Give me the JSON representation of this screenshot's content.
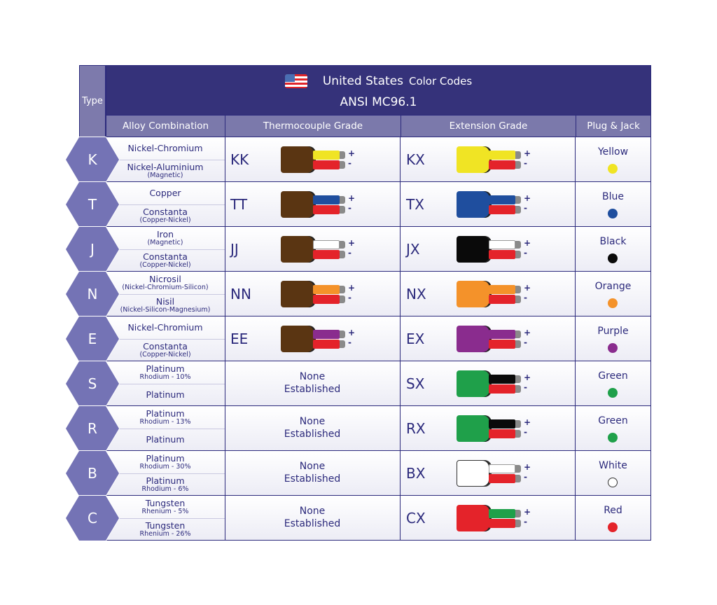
{
  "header": {
    "type_label": "Type",
    "country": "United States",
    "title_suffix": "Color Codes",
    "standard": "ANSI MC96.1",
    "flag_icon": "us-flag-icon"
  },
  "columns": {
    "alloy": "Alloy Combination",
    "thermocouple": "Thermocouple Grade",
    "extension": "Extension Grade",
    "plug": "Plug & Jack"
  },
  "signs": {
    "pos": "+",
    "neg": "-"
  },
  "none_text": [
    "None",
    "Established"
  ],
  "colors": {
    "brown": "#5a3512",
    "yellow": "#f0e424",
    "red": "#e4232a",
    "blue": "#1f4e9e",
    "white": "#ffffff",
    "black": "#0a0a0a",
    "orange": "#f4922a",
    "purple": "#8a2c8e",
    "green": "#1fa04a"
  },
  "rows": [
    {
      "type": "K",
      "alloys": [
        {
          "name": "Nickel-Chromium"
        },
        {
          "name": "Nickel-Aluminium",
          "sub": "(Magnetic)"
        }
      ],
      "tc": {
        "code": "KK",
        "jacket": "brown",
        "pos": "yellow",
        "neg": "red"
      },
      "ext": {
        "code": "KX",
        "jacket": "yellow",
        "pos": "yellow",
        "neg": "red"
      },
      "plug": {
        "name": "Yellow",
        "color": "yellow"
      }
    },
    {
      "type": "T",
      "alloys": [
        {
          "name": "Copper"
        },
        {
          "name": "Constanta",
          "sub": "(Copper-Nickel)"
        }
      ],
      "tc": {
        "code": "TT",
        "jacket": "brown",
        "pos": "blue",
        "neg": "red"
      },
      "ext": {
        "code": "TX",
        "jacket": "blue",
        "pos": "blue",
        "neg": "red"
      },
      "plug": {
        "name": "Blue",
        "color": "blue"
      }
    },
    {
      "type": "J",
      "alloys": [
        {
          "name": "Iron",
          "sub": "(Magnetic)"
        },
        {
          "name": "Constanta",
          "sub": "(Copper-Nickel)"
        }
      ],
      "tc": {
        "code": "JJ",
        "jacket": "brown",
        "pos": "white",
        "neg": "red"
      },
      "ext": {
        "code": "JX",
        "jacket": "black",
        "pos": "white",
        "neg": "red"
      },
      "plug": {
        "name": "Black",
        "color": "black"
      }
    },
    {
      "type": "N",
      "alloys": [
        {
          "name": "Nicrosil",
          "sub": "(Nickel-Chromium-Silicon)"
        },
        {
          "name": "Nisil",
          "sub": "(Nickel-Silicon-Magnesium)"
        }
      ],
      "tc": {
        "code": "NN",
        "jacket": "brown",
        "pos": "orange",
        "neg": "red"
      },
      "ext": {
        "code": "NX",
        "jacket": "orange",
        "pos": "orange",
        "neg": "red"
      },
      "plug": {
        "name": "Orange",
        "color": "orange"
      }
    },
    {
      "type": "E",
      "alloys": [
        {
          "name": "Nickel-Chromium"
        },
        {
          "name": "Constanta",
          "sub": "(Copper-Nickel)"
        }
      ],
      "tc": {
        "code": "EE",
        "jacket": "brown",
        "pos": "purple",
        "neg": "red"
      },
      "ext": {
        "code": "EX",
        "jacket": "purple",
        "pos": "purple",
        "neg": "red"
      },
      "plug": {
        "name": "Purple",
        "color": "purple"
      }
    },
    {
      "type": "S",
      "alloys": [
        {
          "name": "Platinum",
          "sub": "Rhodium - 10%"
        },
        {
          "name": "Platinum"
        }
      ],
      "tc": null,
      "ext": {
        "code": "SX",
        "jacket": "green",
        "pos": "black",
        "neg": "red"
      },
      "plug": {
        "name": "Green",
        "color": "green"
      }
    },
    {
      "type": "R",
      "alloys": [
        {
          "name": "Platinum",
          "sub": "Rhodium - 13%"
        },
        {
          "name": "Platinum"
        }
      ],
      "tc": null,
      "ext": {
        "code": "RX",
        "jacket": "green",
        "pos": "black",
        "neg": "red"
      },
      "plug": {
        "name": "Green",
        "color": "green"
      }
    },
    {
      "type": "B",
      "alloys": [
        {
          "name": "Platinum",
          "sub": "Rhodium - 30%"
        },
        {
          "name": "Platinum",
          "sub": "Rhodium - 6%"
        }
      ],
      "tc": null,
      "ext": {
        "code": "BX",
        "jacket": "white",
        "pos": "white",
        "neg": "red"
      },
      "plug": {
        "name": "White",
        "color": "white"
      }
    },
    {
      "type": "C",
      "alloys": [
        {
          "name": "Tungsten",
          "sub": "Rhenium - 5%"
        },
        {
          "name": "Tungsten",
          "sub": "Rhenium - 26%"
        }
      ],
      "tc": null,
      "ext": {
        "code": "CX",
        "jacket": "red",
        "pos": "green",
        "neg": "red"
      },
      "plug": {
        "name": "Red",
        "color": "red"
      }
    }
  ]
}
